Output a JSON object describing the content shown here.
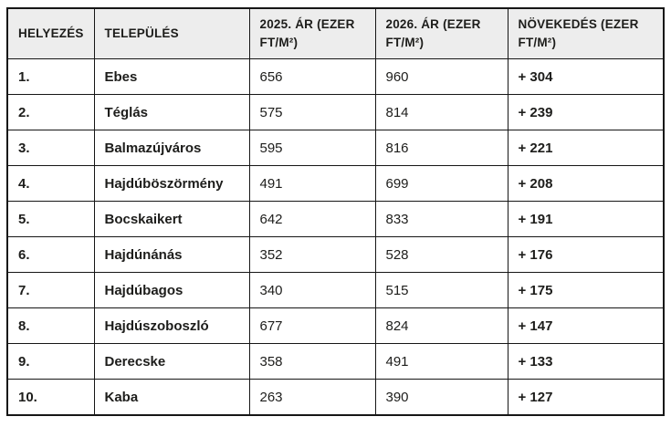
{
  "table": {
    "columns": [
      {
        "key": "helyezes",
        "label": "HELYEZÉS"
      },
      {
        "key": "telepules",
        "label": "TELEPÜLÉS"
      },
      {
        "key": "ar-2025",
        "label": "2025. ÁR (EZER FT/M²)"
      },
      {
        "key": "ar-2026",
        "label": "2026. ÁR (EZER FT/M²)"
      },
      {
        "key": "novekedes",
        "label": "NÖVEKEDÉS (EZER FT/M²)"
      }
    ],
    "rows": [
      [
        "1.",
        "Ebes",
        "656",
        "960",
        "+ 304"
      ],
      [
        "2.",
        "Téglás",
        "575",
        "814",
        "+ 239"
      ],
      [
        "3.",
        "Balmazújváros",
        "595",
        "816",
        "+ 221"
      ],
      [
        "4.",
        "Hajdúböszörmény",
        "491",
        "699",
        "+ 208"
      ],
      [
        "5.",
        "Bocskaikert",
        "642",
        "833",
        "+ 191"
      ],
      [
        "6.",
        "Hajdúnánás",
        "352",
        "528",
        "+ 176"
      ],
      [
        "7.",
        "Hajdúbagos",
        "340",
        "515",
        "+ 175"
      ],
      [
        "8.",
        "Hajdúszoboszló",
        "677",
        "824",
        "+ 147"
      ],
      [
        "9.",
        "Derecske",
        "358",
        "491",
        "+ 133"
      ],
      [
        "10.",
        "Kaba",
        "263",
        "390",
        "+ 127"
      ]
    ]
  },
  "colors": {
    "header_bg": "#ededed",
    "row_bg": "#ffffff",
    "border": "#161616",
    "text": "#1d1d1b"
  },
  "chart_data": {
    "type": "table",
    "title": "",
    "columns": [
      "HELYEZÉS",
      "TELEPÜLÉS",
      "2025. ÁR (EZER FT/M²)",
      "2026. ÁR (EZER FT/M²)",
      "NÖVEKEDÉS (EZER FT/M²)"
    ],
    "rows": [
      [
        "1.",
        "Ebes",
        656,
        960,
        304
      ],
      [
        "2.",
        "Téglás",
        575,
        814,
        239
      ],
      [
        "3.",
        "Balmazújváros",
        595,
        816,
        221
      ],
      [
        "4.",
        "Hajdúböszörmény",
        491,
        699,
        208
      ],
      [
        "5.",
        "Bocskaikert",
        642,
        833,
        191
      ],
      [
        "6.",
        "Hajdúnánás",
        352,
        528,
        176
      ],
      [
        "7.",
        "Hajdúbagos",
        340,
        515,
        175
      ],
      [
        "8.",
        "Hajdúszoboszló",
        677,
        824,
        147
      ],
      [
        "9.",
        "Derecske",
        358,
        491,
        133
      ],
      [
        "10.",
        "Kaba",
        263,
        390,
        127
      ]
    ],
    "units": "ezer Ft/m²",
    "notes": "growth column rendered with a leading plus sign, e.g. + 304"
  }
}
